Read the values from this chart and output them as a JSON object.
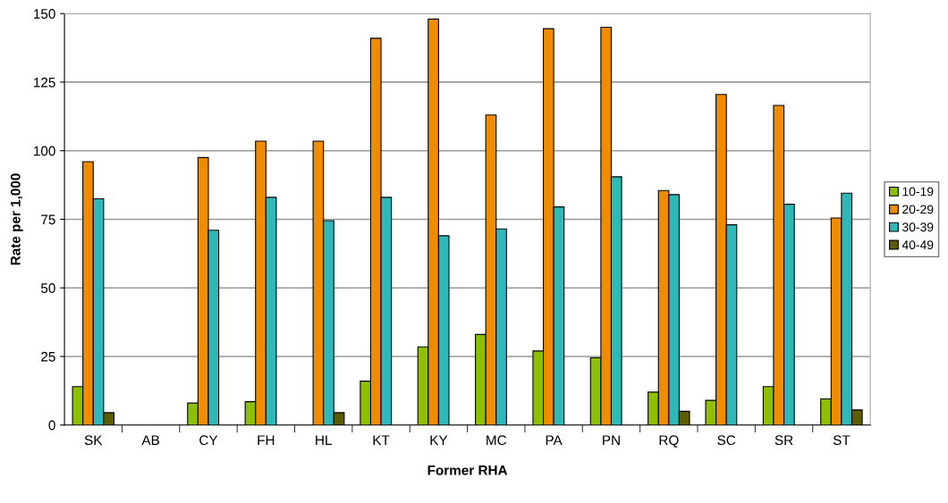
{
  "chart_data": {
    "type": "bar",
    "xlabel": "Former RHA",
    "ylabel": "Rate per 1,000",
    "categories": [
      "SK",
      "AB",
      "CY",
      "FH",
      "HL",
      "KT",
      "KY",
      "MC",
      "PA",
      "PN",
      "RQ",
      "SC",
      "SR",
      "ST"
    ],
    "series": [
      {
        "name": "10-19",
        "color": "#8cc000",
        "values": [
          14,
          null,
          8,
          8.5,
          null,
          16,
          28.5,
          33,
          27,
          24.5,
          12,
          9,
          14,
          9.5
        ]
      },
      {
        "name": "20-29",
        "color": "#f08c00",
        "values": [
          96,
          null,
          97.5,
          103.5,
          103.5,
          141,
          148,
          113,
          144.5,
          145,
          85.5,
          120.5,
          116.5,
          75.5
        ]
      },
      {
        "name": "30-39",
        "color": "#30b8b8",
        "values": [
          82.5,
          null,
          71,
          83,
          74.5,
          83,
          69,
          71.5,
          79.5,
          90.5,
          84,
          73,
          80.5,
          84.5
        ]
      },
      {
        "name": "40-49",
        "color": "#5c5c00",
        "values": [
          4.5,
          null,
          null,
          null,
          4.5,
          null,
          null,
          null,
          null,
          null,
          5,
          null,
          null,
          5.5
        ]
      }
    ],
    "ylim": [
      0,
      150
    ],
    "yticks": [
      0,
      25,
      50,
      75,
      100,
      125,
      150
    ],
    "grid": "y",
    "legend": "right"
  }
}
